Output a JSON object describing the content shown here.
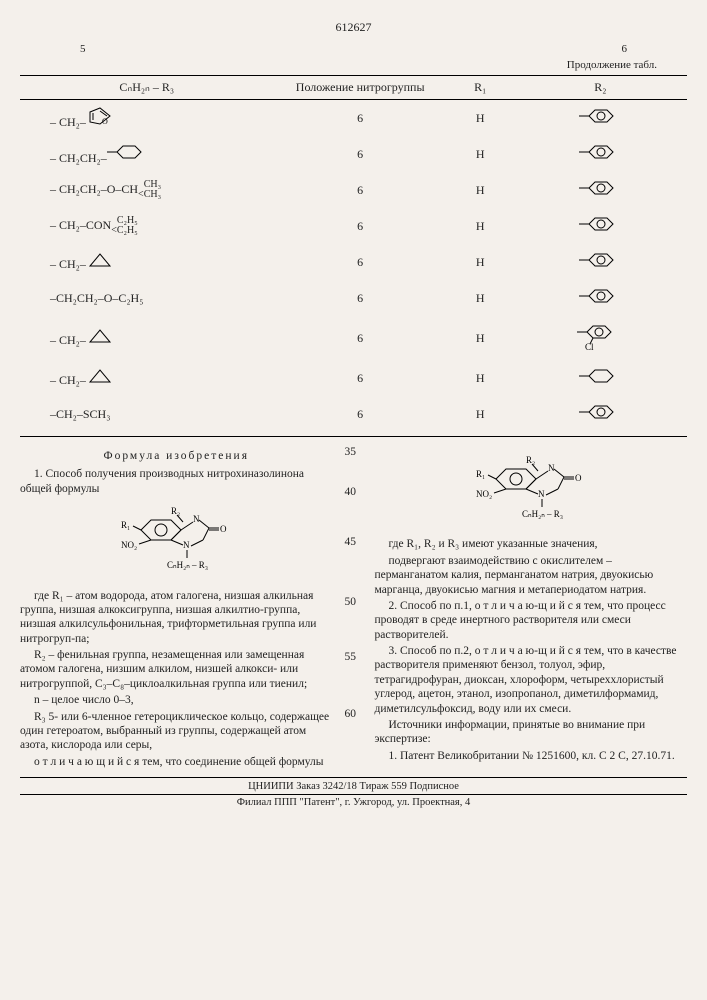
{
  "doc_number": "612627",
  "col_left_num": "5",
  "col_right_num": "6",
  "continuation": "Продолжение табл.",
  "headers": {
    "col1": "CₙH₂ₙ – R₃",
    "col2": "Положение нитрогруппы",
    "col3": "R₁",
    "col4": "R₂"
  },
  "rows": [
    {
      "struct": "– CH₂–[furyl]",
      "pos": "6",
      "r1": "H",
      "r2": "phenyl"
    },
    {
      "struct": "– CH₂CH₂–[cyclohexyl]",
      "pos": "6",
      "r1": "H",
      "r2": "phenyl"
    },
    {
      "struct": "– CH₂CH₂–O–CH(CH₃)/CH₃",
      "pos": "6",
      "r1": "H",
      "r2": "phenyl"
    },
    {
      "struct": "– CH₂–CON(C₂H₅)/C₂H₅",
      "pos": "6",
      "r1": "H",
      "r2": "phenyl"
    },
    {
      "struct": "– CH₂–[cycloprop]",
      "pos": "6",
      "r1": "H",
      "r2": "phenyl"
    },
    {
      "struct": "–CH₂CH₂–O–C₂H₅",
      "pos": "6",
      "r1": "H",
      "r2": "phenyl"
    },
    {
      "struct": "– CH₂–[cycloprop]",
      "pos": "6",
      "r1": "H",
      "r2": "phenyl-cl"
    },
    {
      "struct": "– CH₂–[cycloprop]",
      "pos": "6",
      "r1": "H",
      "r2": "cyclohexyl"
    },
    {
      "struct": "–CH₂–SCH₃",
      "pos": "6",
      "r1": "H",
      "r2": "phenyl"
    }
  ],
  "line_numbers": [
    "35",
    "40",
    "45",
    "50",
    "55",
    "60"
  ],
  "left_col": {
    "formula_title": "Формула   изобретения",
    "p1": "1. Способ получения производных нитрохиназолинона   общей формулы",
    "p2": "где R₁ – атом водорода, атом галогена, низшая алкильная группа, низшая алкоксигруппа, низшая алкилтио-группа, низшая алкилсульфонильная, трифторметильная группа или нитрогруп-па;",
    "p3": "R₂ – фенильная группа, незамещенная или замещенная атомом галогена, низшим алкилом, низшей алкокси- или нитрогруппой, C₃–C₈–циклоалкильная группа или тиенил;",
    "p4": "n – целое число 0–3,",
    "p5": "R₃ 5- или 6-членное гетероциклическое кольцо, содержащее один гетероатом, выбранный из группы, содержащей атом азота, кислорода или серы,",
    "p6": "о т л и ч а ю щ и й с я   тем, что соединение общей формулы"
  },
  "right_col": {
    "p1": "где R₁, R₂ и R₃ имеют указанные значения,",
    "p2": "подвергают взаимодействию с окислителем – перманганатом калия, перманганатом натрия, двуокисью марганца, двуокисью магния и метапериодатом натрия.",
    "p3": "2. Способ по п.1, о т л и ч а ю-щ и й с я   тем, что процесс проводят в среде инертного растворителя или смеси растворителей.",
    "p4": "3. Способ по п.2, о т л и ч а ю-щ и й с я   тем, что в качестве растворителя применяют бензол, толуол, эфир, тетрагидрофуран, диоксан, хлороформ, четыреххлористый углерод, ацетон, этанол, изопропанол, диметилформамид, диметилсульфоксид, воду или их смеси.",
    "p5_title": "Источники информации, принятые во внимание при экспертизе:",
    "p6": "1. Патент Великобритании № 1251600, кл. C 2 C, 27.10.71."
  },
  "footer": {
    "line1": "ЦНИИПИ   Заказ 3242/18      Тираж 559   Подписное",
    "line2": "Филиал ППП \"Патент\", г. Ужгород, ул. Проектная, 4"
  },
  "svg": {
    "phenyl": "<svg width='42' height='20'><line x1='0' y1='10' x2='10' y2='10' stroke='#000'/><polygon points='10,10 16,4 28,4 34,10 28,16 16,16' fill='none' stroke='#000'/><circle cx='22' cy='10' r='4' fill='none' stroke='#000'/></svg>",
    "phenyl_cl": "<svg width='46' height='28'><line x1='0' y1='10' x2='10' y2='10' stroke='#000'/><polygon points='10,10 16,4 28,4 34,10 28,16 16,16' fill='none' stroke='#000'/><circle cx='22' cy='10' r='4' fill='none' stroke='#000'/><line x1='16' y1='16' x2='13' y2='22' stroke='#000'/><text x='8' y='28' font-size='9'>Cl</text></svg>",
    "cyclohexyl": "<svg width='42' height='20'><line x1='0' y1='10' x2='10' y2='10' stroke='#000'/><polygon points='10,10 16,4 28,4 34,10 28,16 16,16' fill='none' stroke='#000'/></svg>",
    "cycloprop": "<svg width='30' height='16'><polygon points='4,14 24,14 14,2' fill='none' stroke='#000'/></svg>",
    "furyl": "<svg width='34' height='20'><polygon points='4,16 4,6 14,2 24,10 14,18' fill='none' stroke='#000'/><line x1='7' y1='14' x2='7' y2='7' stroke='#000'/><line x1='14' y1='5' x2='21' y2='10' stroke='#000'/><text x='16' y='18' font-size='8'>O</text></svg>",
    "quinazolinone": "<svg width='110' height='80'><polygon points='20,30 30,20 50,20 60,30 50,40 30,40' fill='none' stroke='#000'/><circle cx='40' cy='30' r='6' fill='none' stroke='#000'/><line x1='60' y1='30' x2='72' y2='22' stroke='#000'/><text x='72' y='22' font-size='9'>N</text><line x1='78' y1='20' x2='88' y2='28' stroke='#000'/><line x1='88' y1='28' x2='82' y2='40' stroke='#000'/><text x='62' y='48' font-size='9'>N</text><line x1='60' y1='30' x2='50' y2='40' stroke='#000'/><line x1='50' y1='40' x2='62' y2='45' stroke='#000'/><line x1='82' y1='40' x2='70' y2='46' stroke='#000'/><line x1='88' y1='28' x2='98' y2='28' stroke='#000'/><line x1='88' y1='30' x2='98' y2='30' stroke='#000'/><text x='99' y='32' font-size='9'>O</text><text x='0' y='28' font-size='9'>R₁</text><line x1='12' y1='26' x2='20' y2='30' stroke='#000'/><text x='0' y='48' font-size='9'>NO₂</text><line x1='18' y1='44' x2='30' y2='40' stroke='#000'/><text x='50' y='14' font-size='9'>R₂</text><line x1='56' y1='15' x2='62' y2='22' stroke='#000'/><line x1='66' y1='50' x2='66' y2='58' stroke='#000'/><text x='46' y='68' font-size='9'>CₙH₂ₙ – R₃</text></svg>"
  }
}
